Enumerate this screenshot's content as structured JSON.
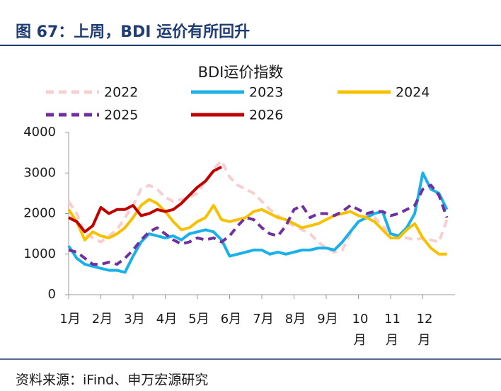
{
  "figure_title": "图 67：上周，BDI 运价有所回升",
  "source": "资料来源：iFind、申万宏源研究",
  "chart_data": {
    "type": "line",
    "title": "BDI运价指数",
    "x": [
      1.0,
      1.25,
      1.5,
      1.75,
      2.0,
      2.25,
      2.5,
      2.75,
      3.0,
      3.25,
      3.5,
      3.75,
      4.0,
      4.25,
      4.5,
      4.75,
      5.0,
      5.25,
      5.5,
      5.75,
      6.0,
      6.25,
      6.5,
      6.75,
      7.0,
      7.25,
      7.5,
      7.75,
      8.0,
      8.25,
      8.5,
      8.75,
      9.0,
      9.25,
      9.5,
      9.75,
      10.0,
      10.25,
      10.5,
      10.75,
      11.0,
      11.25,
      11.5,
      11.75,
      12.0,
      12.25,
      12.5,
      12.75
    ],
    "xlim": [
      1,
      13
    ],
    "xticks": [
      {
        "value": 1,
        "label": "1月"
      },
      {
        "value": 2,
        "label": "2月"
      },
      {
        "value": 3,
        "label": "3月"
      },
      {
        "value": 4,
        "label": "4月"
      },
      {
        "value": 5,
        "label": "5月"
      },
      {
        "value": 6,
        "label": "6月"
      },
      {
        "value": 7,
        "label": "7月"
      },
      {
        "value": 8,
        "label": "8月"
      },
      {
        "value": 9,
        "label": "9月"
      },
      {
        "value": 10,
        "label": "10月"
      },
      {
        "value": 11,
        "label": "11月"
      },
      {
        "value": 12,
        "label": "12月"
      }
    ],
    "ylim": [
      0,
      4000
    ],
    "yticks": [
      0,
      1000,
      2000,
      3000,
      4000
    ],
    "grid": false,
    "series": [
      {
        "name": "2022",
        "color": "#f7cfd0",
        "dashed": true,
        "values": [
          2300,
          2000,
          1500,
          1400,
          1300,
          1450,
          1600,
          1900,
          2200,
          2600,
          2700,
          2600,
          2400,
          2300,
          2350,
          2400,
          2500,
          2800,
          3100,
          3300,
          2900,
          2700,
          2600,
          2500,
          2300,
          2100,
          1950,
          1800,
          1700,
          1600,
          1500,
          1300,
          1150,
          1050,
          1100,
          1500,
          1800,
          1950,
          1900,
          1700,
          1500,
          1450,
          1400,
          1350,
          1400,
          1350,
          1300,
          1850
        ]
      },
      {
        "name": "2023",
        "color": "#1ab0e8",
        "dashed": false,
        "values": [
          1200,
          900,
          750,
          700,
          650,
          600,
          600,
          550,
          950,
          1300,
          1500,
          1450,
          1400,
          1450,
          1350,
          1500,
          1550,
          1600,
          1550,
          1350,
          950,
          1000,
          1050,
          1100,
          1100,
          1000,
          1050,
          1000,
          1050,
          1100,
          1100,
          1150,
          1150,
          1100,
          1300,
          1550,
          1800,
          1900,
          2000,
          2050,
          1500,
          1450,
          1650,
          2000,
          3000,
          2600,
          2500,
          2100
        ]
      },
      {
        "name": "2024",
        "color": "#f5c100",
        "dashed": false,
        "values": [
          2100,
          1800,
          1350,
          1550,
          1450,
          1400,
          1500,
          1650,
          1900,
          2200,
          2350,
          2250,
          2050,
          1800,
          1600,
          1650,
          1800,
          1900,
          2200,
          1850,
          1800,
          1850,
          1900,
          2050,
          2100,
          2000,
          1900,
          1850,
          1750,
          1650,
          1700,
          1750,
          1850,
          1950,
          2000,
          2050,
          1950,
          1900,
          1800,
          1600,
          1400,
          1400,
          1600,
          1750,
          1400,
          1150,
          1000,
          1000
        ]
      },
      {
        "name": "2025",
        "color": "#7030a0",
        "dashed": true,
        "values": [
          1100,
          1050,
          900,
          750,
          750,
          800,
          750,
          900,
          1100,
          1350,
          1550,
          1650,
          1500,
          1350,
          1250,
          1300,
          1400,
          1350,
          1400,
          1300,
          1450,
          1700,
          1900,
          1850,
          1650,
          1500,
          1450,
          1700,
          2100,
          2200,
          1900,
          2000,
          2000,
          1950,
          2050,
          2200,
          2100,
          2000,
          2050,
          2050,
          1950,
          2000,
          2100,
          2200,
          2600,
          2700,
          2450,
          1900
        ]
      },
      {
        "name": "2026",
        "color": "#c00000",
        "dashed": false,
        "values": [
          1900,
          1800,
          1550,
          1700,
          2150,
          2000,
          2100,
          2100,
          2200,
          1950,
          2000,
          2100,
          2050,
          2100,
          2250,
          2450,
          2650,
          2800,
          3050,
          3150,
          null,
          null,
          null,
          null,
          null,
          null,
          null,
          null,
          null,
          null,
          null,
          null,
          null,
          null,
          null,
          null,
          null,
          null,
          null,
          null,
          null,
          null,
          null,
          null,
          null,
          null,
          null,
          null
        ]
      }
    ]
  }
}
